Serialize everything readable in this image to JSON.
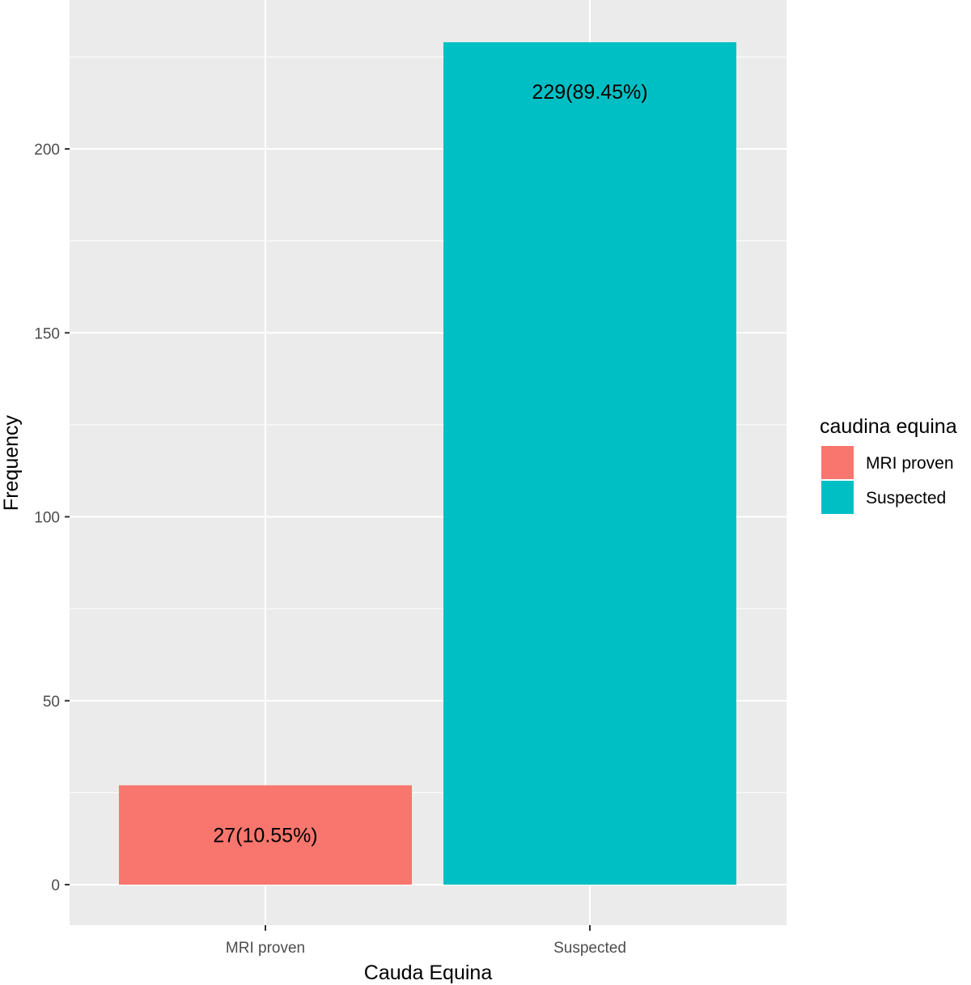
{
  "chart_data": {
    "type": "bar",
    "categories": [
      "MRI proven",
      "Suspected"
    ],
    "values": [
      27,
      229
    ],
    "data_labels": [
      "27(10.55%)",
      "229(89.45%)"
    ],
    "xlabel": "Cauda Equina",
    "ylabel": "Frequency",
    "ylim": [
      0,
      240
    ],
    "yticks": [
      0,
      50,
      100,
      150,
      200
    ],
    "ytick_labels": [
      "0",
      "50",
      "100",
      "150",
      "200"
    ],
    "grid": true,
    "legend": {
      "title": "caudina equina",
      "placement": "right",
      "entries": [
        {
          "label": "MRI proven",
          "color": "#F8766D"
        },
        {
          "label": "Suspected",
          "color": "#00BFC4"
        }
      ]
    },
    "colors": [
      "#F8766D",
      "#00BFC4"
    ],
    "panel_background": "#EBEBEB"
  }
}
